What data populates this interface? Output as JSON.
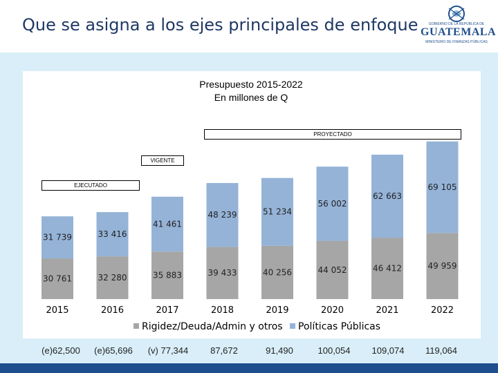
{
  "slide": {
    "title": "Que se asigna a los ejes principales de enfoque",
    "logo": {
      "small": "GOBIERNO DE LA REPÚBLICA DE",
      "word": "GUATEMALA",
      "sub": "MINISTERIO DE FINANZAS PÚBLICAS"
    }
  },
  "colors": {
    "rigidez": "#a6a6a6",
    "politicas": "#95b3d7",
    "header_title": "#1f3864",
    "background_band": "#d9eef8",
    "bottom_bar": "#1f4e8c"
  },
  "chart_data": {
    "type": "bar",
    "stacked": true,
    "title_line1": "Presupuesto 2015-2022",
    "title_line2": "En millones de Q",
    "categories": [
      "2015",
      "2016",
      "2017",
      "2018",
      "2019",
      "2020",
      "2021",
      "2022"
    ],
    "series": [
      {
        "name": "Rigidez/Deuda/Admin y otros",
        "values": [
          30761,
          32280,
          35883,
          39433,
          40256,
          44052,
          46412,
          49959
        ],
        "labels": [
          "30 761",
          "32 280",
          "35 883",
          "39 433",
          "40 256",
          "44 052",
          "46 412",
          "49 959"
        ]
      },
      {
        "name": "Políticas Públicas",
        "values": [
          31739,
          33416,
          41461,
          48239,
          51234,
          56002,
          62663,
          69105
        ],
        "labels": [
          "31 739",
          "33 416",
          "41 461",
          "48 239",
          "51 234",
          "56 002",
          "62 663",
          "69 105"
        ]
      }
    ],
    "ylim": [
      0,
      120000
    ],
    "legend_position": "bottom",
    "annotations": {
      "executed": "EJECUTADO",
      "current": "VIGENTE",
      "projected": "PROYECTADO"
    },
    "totals": [
      "(e)62,500",
      "(e)65,696",
      "(v) 77,344",
      "87,672",
      "91,490",
      "100,054",
      "109,074",
      "119,064"
    ]
  }
}
